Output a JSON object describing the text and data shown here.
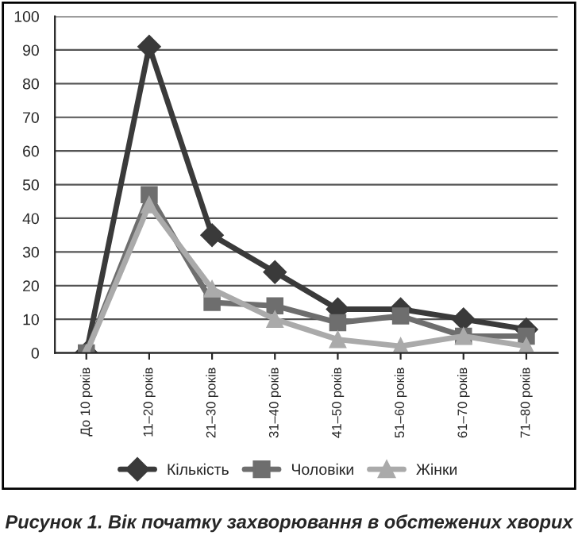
{
  "chart_data": {
    "type": "line",
    "title": "Рисунок 1. Вік початку захворювання в обстежених хворих",
    "categories": [
      "До 10 років",
      "11–20 років",
      "21–30 років",
      "31–40 років",
      "41–50 років",
      "51–60 років",
      "61–70 років",
      "71–80 років"
    ],
    "series": [
      {
        "name": "Кількість",
        "color": "#3a3a3a",
        "marker": "diamond",
        "values": [
          0,
          91,
          35,
          24,
          13,
          13,
          10,
          7
        ]
      },
      {
        "name": "Чоловіки",
        "color": "#6e6e6e",
        "marker": "square",
        "values": [
          0,
          47,
          15,
          14,
          9,
          11,
          5,
          5
        ]
      },
      {
        "name": "Жінки",
        "color": "#aaaaaa",
        "marker": "triangle",
        "values": [
          0,
          44,
          19,
          10,
          4,
          2,
          5,
          2
        ]
      }
    ],
    "ylim": [
      0,
      100
    ],
    "yticks": [
      0,
      10,
      20,
      30,
      40,
      50,
      60,
      70,
      80,
      90,
      100
    ],
    "grid": "y",
    "legend": "bottom"
  }
}
